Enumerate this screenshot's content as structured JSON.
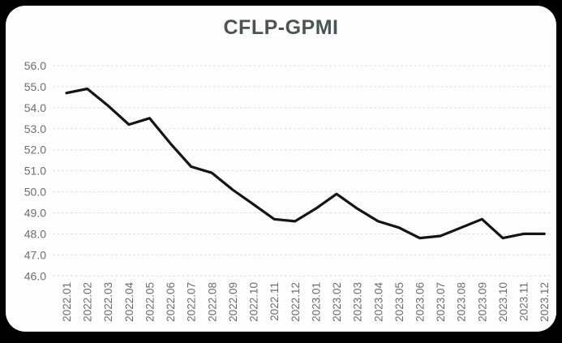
{
  "window": {
    "frame_color": "#000000",
    "card_color": "#fdfdfd"
  },
  "chart_data": {
    "type": "line",
    "title": "CFLP-GPMI",
    "x": [
      "2022.01",
      "2022.02",
      "2022.03",
      "2022.04",
      "2022.05",
      "2022.06",
      "2022.07",
      "2022.08",
      "2022.09",
      "2022.10",
      "2022.11",
      "2022.12",
      "2023.01",
      "2023.02",
      "2023.03",
      "2023.04",
      "2023.05",
      "2023.06",
      "2023.07",
      "2023.08",
      "2023.09",
      "2023.10",
      "2023.11",
      "2023.12"
    ],
    "series": [
      {
        "name": "CFLP-GPMI",
        "values": [
          54.7,
          54.9,
          54.1,
          53.2,
          53.5,
          52.3,
          51.2,
          50.9,
          50.1,
          49.4,
          48.7,
          48.6,
          49.2,
          49.9,
          49.2,
          48.6,
          48.3,
          47.8,
          47.9,
          48.3,
          48.7,
          47.8,
          48.0,
          48.0
        ]
      }
    ],
    "ylim": [
      46.0,
      56.0
    ],
    "ytick_step": 1.0,
    "ytick_labels": [
      "56.0",
      "55.0",
      "54.0",
      "53.0",
      "52.0",
      "51.0",
      "50.0",
      "49.0",
      "48.0",
      "47.0",
      "46.0"
    ],
    "xlabel": "",
    "ylabel": "",
    "legend": "none",
    "grid": "horizontal-dashed",
    "colors": {
      "line": "#141414",
      "gridline": "#d8e3e4",
      "tick_label": "#6e6e6e",
      "title": "#4a5456"
    }
  }
}
